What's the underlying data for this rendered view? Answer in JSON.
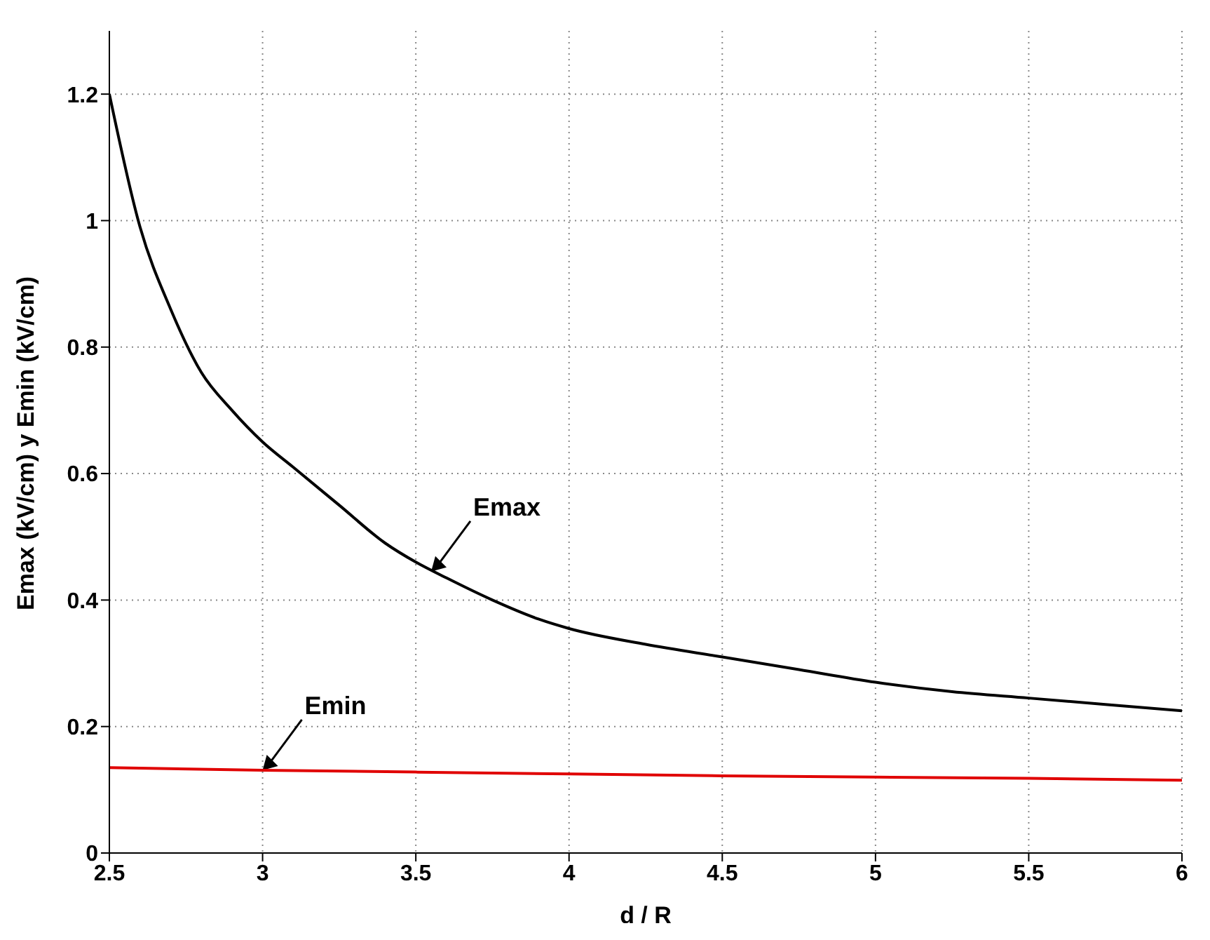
{
  "chart_data": {
    "type": "line",
    "xlabel": "d / R",
    "ylabel": "Emax (kV/cm) y Emin (kV/cm)",
    "xlim": [
      2.5,
      6
    ],
    "xticks": [
      2.5,
      3,
      3.5,
      4,
      4.5,
      5,
      5.5,
      6
    ],
    "ylim": [
      0,
      1.3
    ],
    "yticks": [
      0,
      0.2,
      0.4,
      0.6,
      0.8,
      1,
      1.2
    ],
    "grid": true,
    "marker": "none",
    "line_style": "solid",
    "series": [
      {
        "color": "#000000",
        "x": [
          2.5,
          2.6,
          2.7,
          2.8,
          2.9,
          3,
          3.1,
          3.25,
          3.4,
          3.5,
          3.6,
          3.75,
          3.9,
          4,
          4.25,
          4.5,
          4.75,
          5,
          5.25,
          5.5,
          5.75,
          6
        ],
        "values": [
          1.2,
          0.99,
          0.86,
          0.76,
          0.7,
          0.65,
          0.61,
          0.55,
          0.49,
          0.46,
          0.435,
          0.4,
          0.37,
          0.355,
          0.33,
          0.31,
          0.29,
          0.27,
          0.255,
          0.245,
          0.235,
          0.225
        ]
      },
      {
        "color": "#e00000",
        "x": [
          2.5,
          3,
          3.5,
          4,
          4.5,
          5,
          5.5,
          6
        ],
        "values": [
          0.135,
          0.131,
          0.128,
          0.125,
          0.122,
          0.12,
          0.118,
          0.115
        ]
      }
    ],
    "annotations": [
      {
        "text": "Emax",
        "x": 3.55,
        "y": 0.445
      },
      {
        "text": "Emin",
        "x": 3,
        "y": 0.131
      }
    ]
  }
}
